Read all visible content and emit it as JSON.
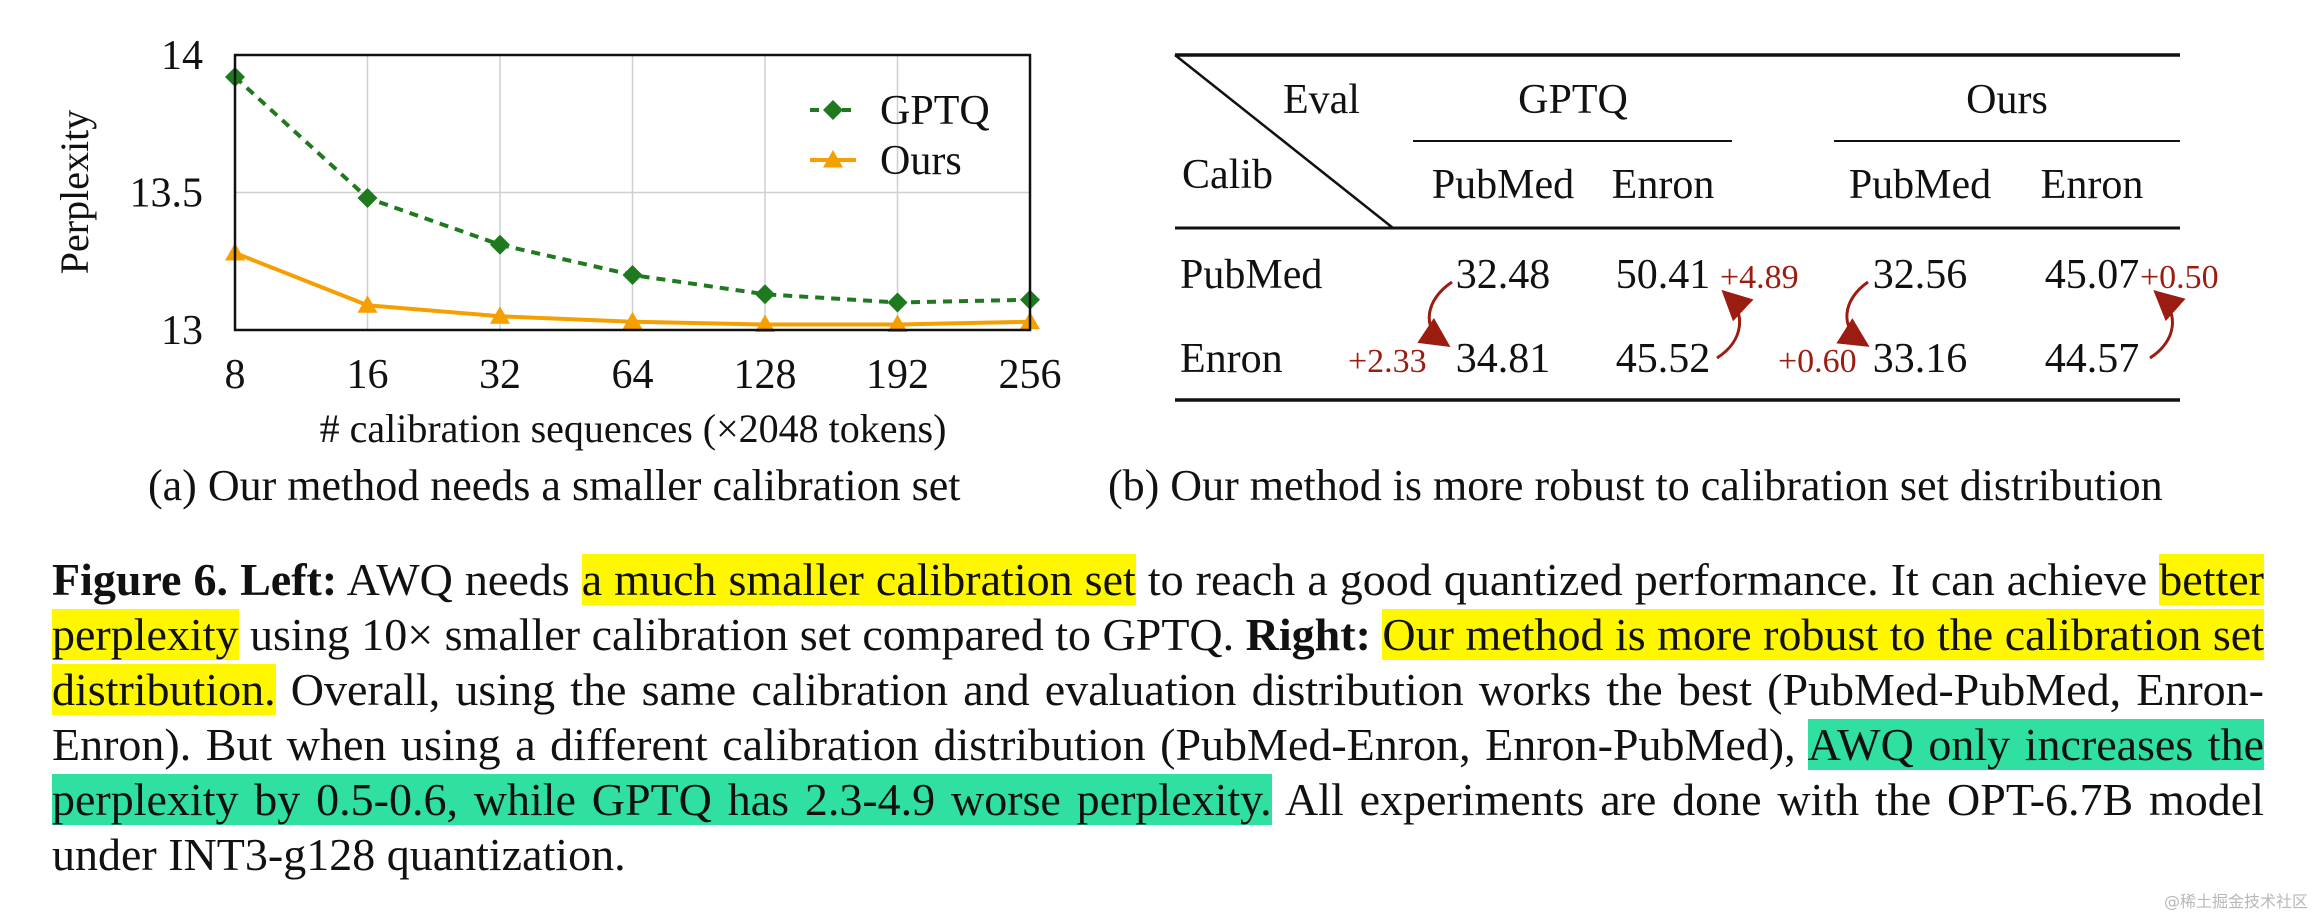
{
  "chart_data": {
    "type": "line",
    "ylabel": "Perplexity",
    "xlabel": "# calibration sequences (×2048 tokens)",
    "categories": [
      "8",
      "16",
      "32",
      "64",
      "128",
      "192",
      "256"
    ],
    "yticks": [
      "14",
      "13.5",
      "13"
    ],
    "ylim": [
      13,
      14
    ],
    "grid": true,
    "legend_position": "top-right",
    "series": [
      {
        "name": "GPTQ",
        "color": "#1f7a1f",
        "marker": "diamond",
        "style": "dashed",
        "values": [
          13.92,
          13.48,
          13.31,
          13.2,
          13.13,
          13.1,
          13.11
        ]
      },
      {
        "name": "Ours",
        "color": "#f5a000",
        "marker": "triangle",
        "style": "solid",
        "values": [
          13.28,
          13.09,
          13.05,
          13.03,
          13.02,
          13.02,
          13.03
        ]
      }
    ]
  },
  "table": {
    "corner_eval": "Eval",
    "corner_calib": "Calib",
    "group_gptq": "GPTQ",
    "group_ours": "Ours",
    "col_pubmed": "PubMed",
    "col_enron": "Enron",
    "rows": [
      {
        "label": "PubMed",
        "gptq_pubmed": "32.48",
        "gptq_enron": "50.41",
        "ours_pubmed": "32.56",
        "ours_enron": "45.07"
      },
      {
        "label": "Enron",
        "gptq_pubmed": "34.81",
        "gptq_enron": "45.52",
        "ours_pubmed": "33.16",
        "ours_enron": "44.57"
      }
    ],
    "deltas": {
      "gptq_enron": "+4.89",
      "gptq_pubmed": "+2.33",
      "ours_pubmed": "+0.60",
      "ours_enron": "+0.50"
    },
    "delta_color": "#9b1c10"
  },
  "subcaptions": {
    "a": "(a) Our method needs a smaller calibration set",
    "b": "(b) Our method is more robust to calibration set distribution"
  },
  "caption": {
    "fig": "Figure 6.",
    "left_label": "Left:",
    "t1": " AWQ needs ",
    "h1": "a much smaller calibration set",
    "t2": " to reach a good quantized performance. It can achieve ",
    "h2": "better perplexity",
    "t3": " using 10× smaller calibration set compared to GPTQ. ",
    "right_label": "Right:",
    "t4": " ",
    "h3": "Our method is more robust to the calibration set distribution.",
    "t5": " Overall, using the same calibration and evaluation distribution works the best (PubMed-PubMed, Enron-Enron). But when using a different calibration distribution (PubMed-Enron, Enron-PubMed), ",
    "h4": "AWQ only increases the perplexity by 0.5-0.6, while GPTQ has 2.3-4.9 worse perplexity.",
    "t6": " All experiments are done with the OPT-6.7B model under INT3-g128 quantization."
  },
  "watermark": "@稀土掘金技术社区"
}
